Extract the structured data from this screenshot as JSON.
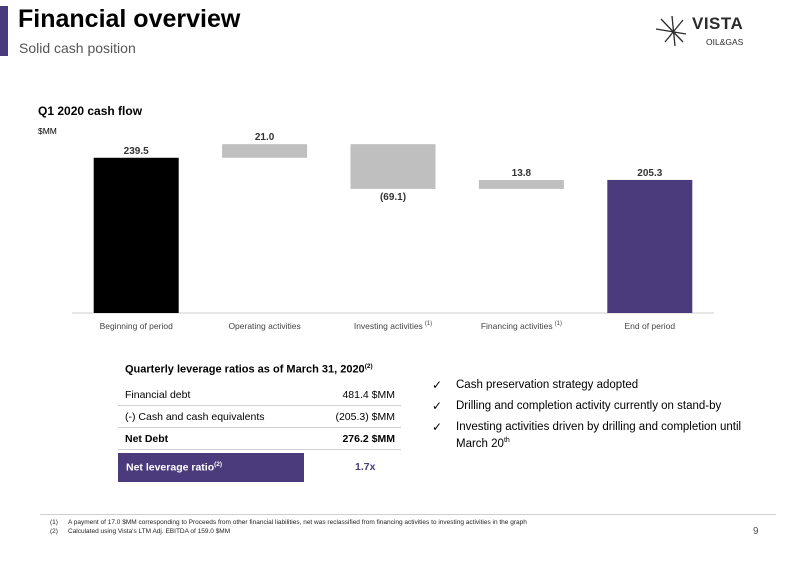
{
  "header": {
    "title": "Financial overview",
    "subtitle": "Solid cash position",
    "logo_main": "VISTA",
    "logo_sub": "OIL&GAS"
  },
  "colors": {
    "accent": "#4b3b7c",
    "bar_start": "#000000",
    "bar_step": "#bfbfbf",
    "bar_end": "#4b3b7c"
  },
  "chart_data": {
    "type": "bar",
    "subtype": "waterfall",
    "title": "Q1 2020 cash flow",
    "unit": "$MM",
    "categories": [
      "Beginning of period",
      "Operating activities",
      "Investing activities",
      "Financing activities",
      "End of period"
    ],
    "category_notes": [
      "",
      "",
      "(1)",
      "(1)",
      ""
    ],
    "values": [
      239.5,
      21.0,
      -69.1,
      13.8,
      205.3
    ],
    "value_labels": [
      "239.5",
      "21.0",
      "(69.1)",
      "13.8",
      "205.3"
    ],
    "bar_kinds": [
      "total",
      "delta",
      "delta",
      "delta",
      "total"
    ],
    "ylim": [
      0,
      270
    ],
    "grid": false,
    "legend": "none"
  },
  "leverage_table": {
    "title": "Quarterly leverage ratios as of March 31, 2020",
    "title_note": "(2)",
    "rows": [
      {
        "label": "Financial debt",
        "value": "481.4 $MM"
      },
      {
        "label": "(-) Cash and cash equivalents",
        "value": "(205.3) $MM"
      },
      {
        "label": "Net Debt",
        "value": "276.2 $MM"
      }
    ],
    "ratio_label": "Net leverage ratio",
    "ratio_note": "(2)",
    "ratio_value": "1.7x"
  },
  "bullets": [
    {
      "text": "Cash preservation strategy adopted",
      "sup": ""
    },
    {
      "text": "Drilling and completion activity currently on stand-by",
      "sup": ""
    },
    {
      "text": "Investing activities driven by drilling and completion until March 20",
      "sup": "th"
    }
  ],
  "footnotes": [
    {
      "num": "(1)",
      "text": "A payment of 17.0 $MM corresponding to Proceeds from other financial liabilities, net was reclassified from financing activities to investing activities in the graph"
    },
    {
      "num": "(2)",
      "text": "Calculated using Vista's LTM Adj. EBITDA of 159.0 $MM"
    }
  ],
  "page_number": "9"
}
